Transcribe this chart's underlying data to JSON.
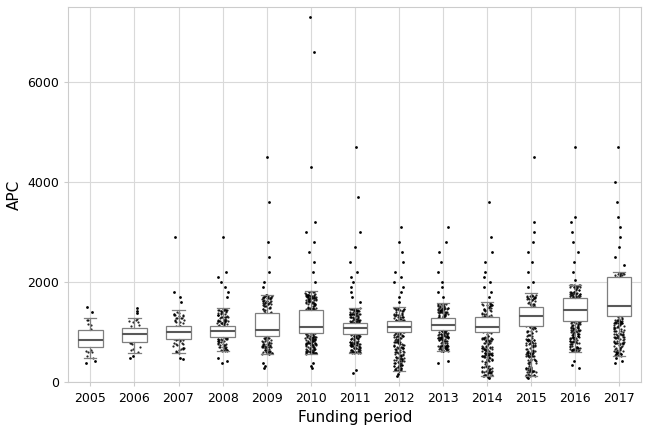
{
  "years": [
    2005,
    2006,
    2007,
    2008,
    2009,
    2010,
    2011,
    2012,
    2013,
    2014,
    2015,
    2016,
    2017
  ],
  "box_stats": {
    "2005": {
      "q1": 700,
      "median": 850,
      "q3": 1050,
      "whislo": 480,
      "whishi": 1280
    },
    "2006": {
      "q1": 800,
      "median": 960,
      "q3": 1080,
      "whislo": 580,
      "whishi": 1280
    },
    "2007": {
      "q1": 870,
      "median": 1000,
      "q3": 1130,
      "whislo": 580,
      "whishi": 1450
    },
    "2008": {
      "q1": 900,
      "median": 1020,
      "q3": 1130,
      "whislo": 620,
      "whishi": 1480
    },
    "2009": {
      "q1": 920,
      "median": 1050,
      "q3": 1380,
      "whislo": 560,
      "whishi": 1750
    },
    "2010": {
      "q1": 990,
      "median": 1100,
      "q3": 1450,
      "whislo": 570,
      "whishi": 1820
    },
    "2011": {
      "q1": 960,
      "median": 1080,
      "q3": 1190,
      "whislo": 580,
      "whishi": 1480
    },
    "2012": {
      "q1": 1000,
      "median": 1100,
      "q3": 1220,
      "whislo": 230,
      "whishi": 1500
    },
    "2013": {
      "q1": 1050,
      "median": 1150,
      "q3": 1280,
      "whislo": 620,
      "whishi": 1580
    },
    "2014": {
      "q1": 1000,
      "median": 1100,
      "q3": 1300,
      "whislo": 120,
      "whishi": 1600
    },
    "2015": {
      "q1": 1130,
      "median": 1320,
      "q3": 1500,
      "whislo": 120,
      "whishi": 1780
    },
    "2016": {
      "q1": 1230,
      "median": 1450,
      "q3": 1680,
      "whislo": 600,
      "whishi": 1950
    },
    "2017": {
      "q1": 1320,
      "median": 1520,
      "q3": 2100,
      "whislo": 520,
      "whishi": 2200
    }
  },
  "scatter_data": {
    "2005": {
      "n": 15,
      "lo": 480,
      "hi": 1280,
      "outliers_hi": [
        1400,
        1500
      ],
      "outliers_lo": [
        380,
        420
      ]
    },
    "2006": {
      "n": 20,
      "lo": 580,
      "hi": 1280,
      "outliers_hi": [
        1380,
        1420,
        1480
      ],
      "outliers_lo": [
        480,
        520
      ]
    },
    "2007": {
      "n": 60,
      "lo": 580,
      "hi": 1450,
      "outliers_hi": [
        1600,
        1700,
        1800,
        2900
      ],
      "outliers_lo": [
        460,
        490
      ]
    },
    "2008": {
      "n": 120,
      "lo": 620,
      "hi": 1480,
      "outliers_hi": [
        1700,
        1800,
        1900,
        2000,
        2100,
        2200,
        2900
      ],
      "outliers_lo": [
        380,
        420,
        480
      ]
    },
    "2009": {
      "n": 160,
      "lo": 560,
      "hi": 1750,
      "outliers_hi": [
        1900,
        2000,
        2200,
        2500,
        2800,
        3600,
        4500
      ],
      "outliers_lo": [
        280,
        320,
        380
      ]
    },
    "2010": {
      "n": 260,
      "lo": 570,
      "hi": 1820,
      "outliers_hi": [
        2000,
        2200,
        2400,
        2600,
        2800,
        3000,
        3200,
        4300,
        6600,
        7300
      ],
      "outliers_lo": [
        280,
        320,
        380
      ]
    },
    "2011": {
      "n": 200,
      "lo": 580,
      "hi": 1480,
      "outliers_hi": [
        1600,
        1700,
        1800,
        1900,
        2000,
        2100,
        2200,
        2400,
        2700,
        3000,
        3700,
        4700
      ],
      "outliers_lo": [
        180,
        250
      ]
    },
    "2012": {
      "n": 200,
      "lo": 230,
      "hi": 1500,
      "outliers_hi": [
        1600,
        1700,
        1800,
        1900,
        2000,
        2100,
        2200,
        2400,
        2600,
        2800,
        3100
      ],
      "outliers_lo": [
        130,
        160
      ]
    },
    "2013": {
      "n": 200,
      "lo": 620,
      "hi": 1580,
      "outliers_hi": [
        1700,
        1800,
        1900,
        2000,
        2200,
        2400,
        2600,
        2800,
        3100
      ],
      "outliers_lo": [
        380,
        420
      ]
    },
    "2014": {
      "n": 200,
      "lo": 120,
      "hi": 1600,
      "outliers_hi": [
        1700,
        1800,
        1900,
        2000,
        2100,
        2200,
        2400,
        2600,
        2900,
        3600
      ],
      "outliers_lo": [
        80,
        100
      ]
    },
    "2015": {
      "n": 200,
      "lo": 120,
      "hi": 1780,
      "outliers_hi": [
        1900,
        2000,
        2200,
        2400,
        2600,
        2800,
        3000,
        3200,
        4500
      ],
      "outliers_lo": [
        80,
        100
      ]
    },
    "2016": {
      "n": 220,
      "lo": 600,
      "hi": 1950,
      "outliers_hi": [
        2050,
        2200,
        2400,
        2600,
        2800,
        3000,
        3200,
        3300,
        4700
      ],
      "outliers_lo": [
        280,
        350,
        420
      ]
    },
    "2017": {
      "n": 220,
      "lo": 520,
      "hi": 2200,
      "outliers_hi": [
        2350,
        2500,
        2700,
        2900,
        3100,
        3300,
        3600,
        4000,
        4700
      ],
      "outliers_lo": [
        380,
        430,
        480
      ]
    }
  },
  "xlabel": "Funding period",
  "ylabel": "APC",
  "ylim": [
    0,
    7500
  ],
  "yticks": [
    0,
    2000,
    4000,
    6000
  ],
  "background_color": "#ffffff",
  "grid_color": "#d9d9d9",
  "box_color": "#ffffff",
  "box_edge_color": "#7f7f7f",
  "median_color": "#595959",
  "whisker_color": "#7f7f7f",
  "outlier_color": "#000000",
  "xlabel_fontsize": 11,
  "ylabel_fontsize": 11,
  "tick_fontsize": 9,
  "box_width": 0.55
}
